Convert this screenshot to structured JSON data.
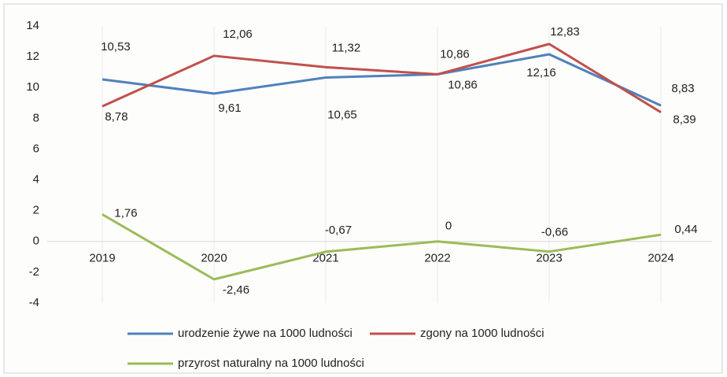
{
  "chart_data": {
    "type": "line",
    "categories": [
      "2019",
      "2020",
      "2021",
      "2022",
      "2023",
      "2024"
    ],
    "series": [
      {
        "name": "urodzenie żywe na 1000 ludności",
        "color": "#4f81bd",
        "values": [
          10.53,
          9.61,
          10.65,
          10.86,
          12.16,
          8.83
        ],
        "value_labels": [
          "10,53",
          "9,61",
          "10,65",
          "10,86",
          "12,16",
          "8,83"
        ]
      },
      {
        "name": "zgony na 1000 ludności",
        "color": "#c0504d",
        "values": [
          8.78,
          12.06,
          11.32,
          10.86,
          12.83,
          8.39
        ],
        "value_labels": [
          "8,78",
          "12,06",
          "11,32",
          "10,86",
          "12,83",
          "8,39"
        ]
      },
      {
        "name": "przyrost naturalny na 1000 ludności",
        "color": "#9bbb59",
        "values": [
          1.76,
          -2.46,
          -0.67,
          0,
          -0.66,
          0.44
        ],
        "value_labels": [
          "1,76",
          "-2,46",
          "-0,67",
          "0",
          "-0,66",
          "0,44"
        ]
      }
    ],
    "ylim": [
      -4,
      14
    ],
    "yticks": [
      -4,
      -2,
      0,
      2,
      4,
      6,
      8,
      10,
      12,
      14
    ],
    "legend": "bottom"
  }
}
